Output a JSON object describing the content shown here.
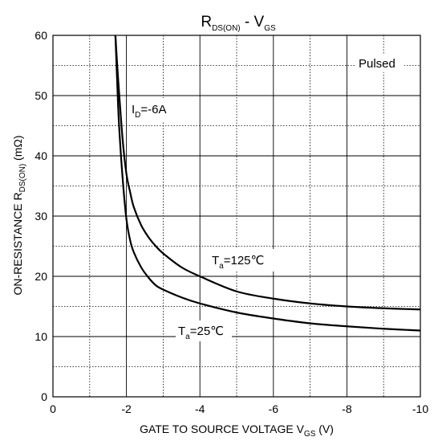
{
  "chart_data": {
    "type": "line",
    "title": {
      "main": "R",
      "sub": "DS(ON)",
      "mid": " - V",
      "sub2": "GS"
    },
    "xlabel": {
      "main": "GATE TO SOURCE VOLTAGE V",
      "sub": "GS",
      "unit": " (V)"
    },
    "ylabel": {
      "main": "ON-RESISTANCE R",
      "sub": "DS(ON)",
      "unit": " (mΩ)"
    },
    "xlim": [
      0,
      -10
    ],
    "ylim": [
      0,
      60
    ],
    "x_ticks": [
      0,
      -2,
      -4,
      -6,
      -8,
      -10
    ],
    "x_tick_labels": [
      "0",
      "-2",
      "-4",
      "-6",
      "-8",
      "-10"
    ],
    "y_ticks": [
      0,
      10,
      20,
      30,
      40,
      50,
      60
    ],
    "y_tick_labels": [
      "0",
      "10",
      "20",
      "30",
      "40",
      "50",
      "60"
    ],
    "grid": {
      "major": "solid",
      "minor": "dotted"
    },
    "annotations": {
      "pulsed": "Pulsed",
      "id": {
        "main": "I",
        "sub": "D",
        "rest": "=-6A"
      },
      "ta125": {
        "main": "T",
        "sub": "a",
        "rest": "=125℃"
      },
      "ta25": {
        "main": "T",
        "sub": "a",
        "rest": "=25℃"
      }
    },
    "series": [
      {
        "x": [
          -1.7,
          -1.75,
          -1.8,
          -1.9,
          -2.0,
          -2.1,
          -2.2,
          -2.4,
          -2.6,
          -2.8,
          -3.0,
          -3.5,
          -4.0,
          -5.0,
          -6.0,
          -7.0,
          -8.0,
          -9.0,
          -10.0
        ],
        "y": [
          60,
          52,
          45,
          36,
          29.5,
          26,
          24,
          21.5,
          19.8,
          18.5,
          17.8,
          16.5,
          15.5,
          14,
          13,
          12.2,
          11.7,
          11.3,
          11
        ]
      },
      {
        "x": [
          -1.7,
          -1.75,
          -1.8,
          -1.9,
          -2.0,
          -2.1,
          -2.2,
          -2.4,
          -2.6,
          -2.8,
          -3.0,
          -3.5,
          -4.0,
          -5.0,
          -6.0,
          -7.0,
          -8.0,
          -9.0,
          -10.0
        ],
        "y": [
          60,
          55,
          50.5,
          42.5,
          37,
          34,
          31.5,
          28.5,
          26.5,
          25,
          23.8,
          21.5,
          20,
          17.5,
          16.3,
          15.5,
          15,
          14.7,
          14.5
        ]
      }
    ]
  }
}
